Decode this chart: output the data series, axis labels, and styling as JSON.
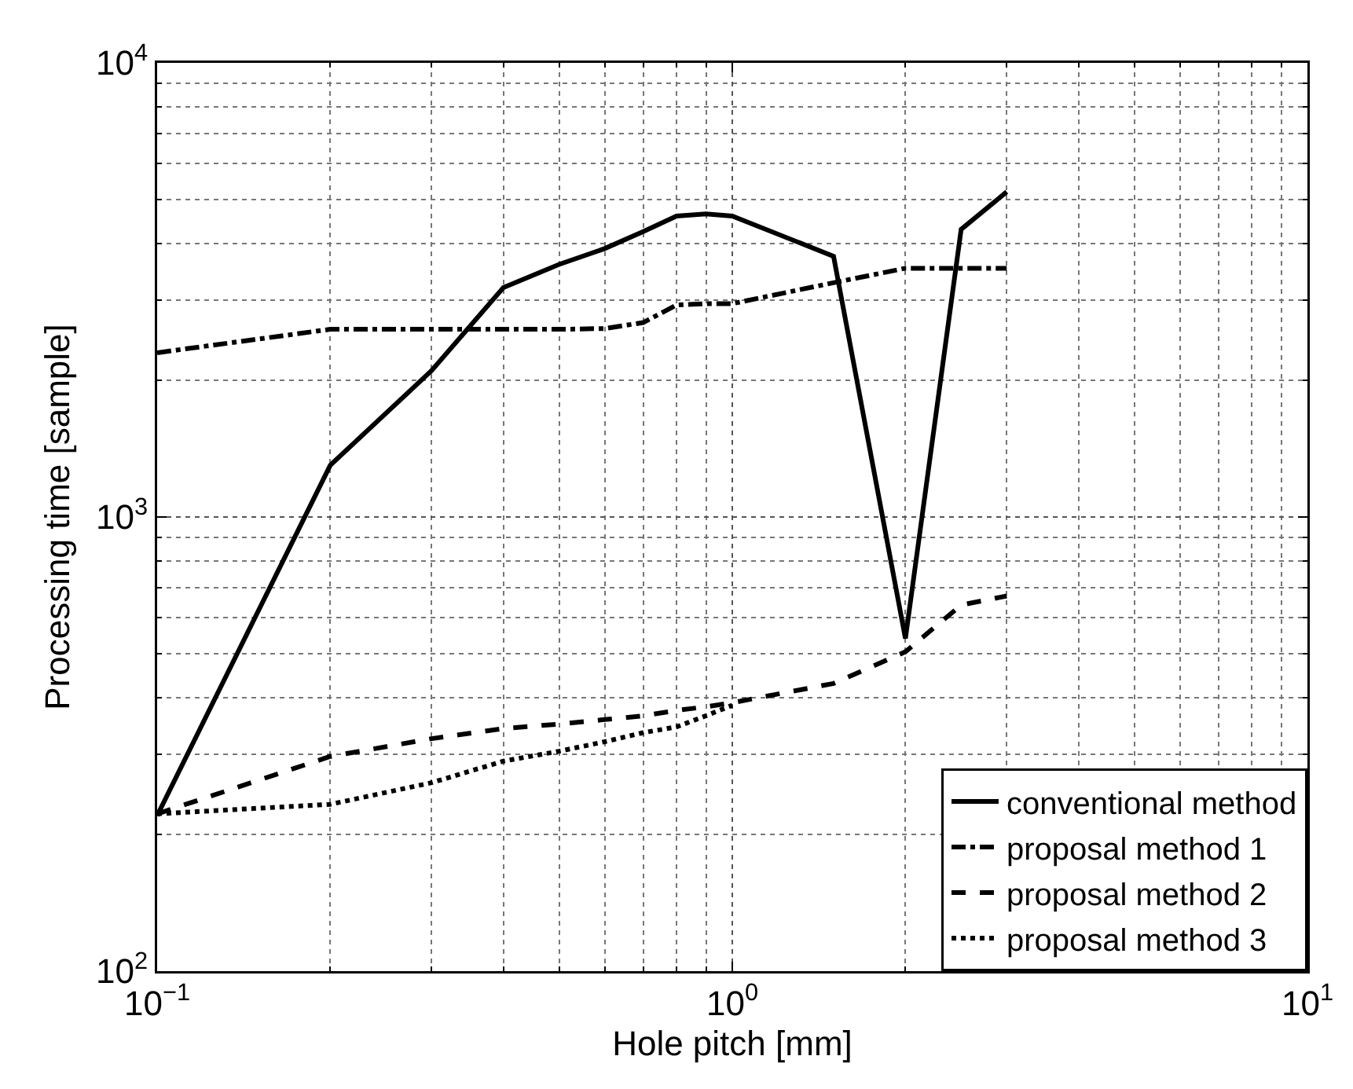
{
  "chart_data": {
    "type": "line",
    "xlabel": "Hole pitch [mm]",
    "ylabel": "Processing time [sample]",
    "log": "xy",
    "xlim": [
      0.1,
      10
    ],
    "xticks": [
      {
        "value": 0.1,
        "label": "10$^{−1}$"
      },
      {
        "value": 1,
        "label": "10$^{0}$"
      },
      {
        "value": 10,
        "label": "10$^{1}$"
      }
    ],
    "ylim": [
      100,
      10000
    ],
    "yticks": [
      {
        "value": 100,
        "label": "10$^{2}$"
      },
      {
        "value": 1000,
        "label": "10$^{3}$"
      },
      {
        "value": 10000,
        "label": "10$^{4}$"
      }
    ],
    "grid": true,
    "legend": "bottom right",
    "marker": "none",
    "x": [
      0.1,
      0.2,
      0.3,
      0.4,
      0.5,
      0.6,
      0.7,
      0.8,
      0.9,
      1.0,
      1.5,
      2.0,
      2.5,
      3.0
    ],
    "series": [
      {
        "name": "conventional method",
        "color": "#000000",
        "line_style": "solid",
        "values": [
          220,
          1300,
          2100,
          3200,
          3600,
          3900,
          4250,
          4600,
          4650,
          4600,
          3750,
          540,
          4300,
          5200
        ]
      },
      {
        "name": "proposal method 1",
        "color": "#000000",
        "line_style": "dashdot",
        "values": [
          2300,
          2590,
          2590,
          2590,
          2590,
          2600,
          2680,
          2930,
          2950,
          2950,
          3280,
          3530,
          3530,
          3530
        ]
      },
      {
        "name": "proposal method 2",
        "color": "#000000",
        "line_style": "dashed",
        "values": [
          222,
          297,
          325,
          342,
          350,
          358,
          365,
          375,
          382,
          390,
          430,
          505,
          640,
          670
        ]
      },
      {
        "name": "proposal method 3",
        "color": "#000000",
        "line_style": "dotted",
        "values": [
          222,
          233,
          260,
          290,
          305,
          320,
          335,
          345,
          365,
          385,
          null,
          null,
          null,
          null
        ]
      }
    ]
  }
}
